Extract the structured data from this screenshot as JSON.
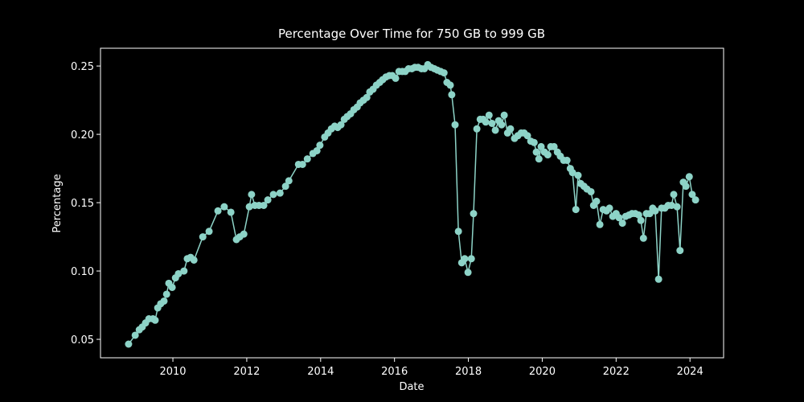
{
  "chart_data": {
    "type": "line",
    "title": "Percentage Over Time for 750 GB to 999 GB",
    "x_label": "Date",
    "y_label": "Percentage",
    "xlim": [
      2008.04,
      2024.91
    ],
    "ylim": [
      0.0365,
      0.263
    ],
    "xticks": [
      2010,
      2012,
      2014,
      2016,
      2018,
      2020,
      2022,
      2024
    ],
    "yticks": [
      0.05,
      {
        "value": 0.1,
        "label": "0.10"
      },
      0.15,
      {
        "value": 0.2,
        "label": "0.20"
      },
      0.25
    ],
    "series": [
      {
        "color": "#8dd3c7",
        "x": [
          2008.8,
          2008.98,
          2009.09,
          2009.17,
          2009.26,
          2009.35,
          2009.46,
          2009.52,
          2009.59,
          2009.67,
          2009.76,
          2009.83,
          2009.89,
          2009.98,
          2010.07,
          2010.15,
          2010.3,
          2010.39,
          2010.48,
          2010.57,
          2010.81,
          2010.98,
          2011.22,
          2011.39,
          2011.57,
          2011.72,
          2011.81,
          2011.92,
          2012.07,
          2012.13,
          2012.22,
          2012.33,
          2012.46,
          2012.57,
          2012.72,
          2012.9,
          2013.05,
          2013.14,
          2013.4,
          2013.51,
          2013.64,
          2013.79,
          2013.9,
          2013.98,
          2014.11,
          2014.2,
          2014.29,
          2014.38,
          2014.46,
          2014.55,
          2014.64,
          2014.72,
          2014.81,
          2014.9,
          2014.99,
          2015.07,
          2015.16,
          2015.25,
          2015.33,
          2015.42,
          2015.51,
          2015.6,
          2015.68,
          2015.77,
          2015.86,
          2015.94,
          2016.03,
          2016.12,
          2016.21,
          2016.29,
          2016.38,
          2016.47,
          2016.55,
          2016.64,
          2016.73,
          2016.81,
          2016.9,
          2016.99,
          2017.08,
          2017.16,
          2017.25,
          2017.34,
          2017.42,
          2017.51,
          2017.55,
          2017.64,
          2017.73,
          2017.82,
          2017.9,
          2017.99,
          2018.08,
          2018.14,
          2018.23,
          2018.32,
          2018.4,
          2018.47,
          2018.56,
          2018.64,
          2018.73,
          2018.82,
          2018.9,
          2018.97,
          2019.06,
          2019.14,
          2019.25,
          2019.34,
          2019.43,
          2019.51,
          2019.6,
          2019.69,
          2019.78,
          2019.84,
          2019.91,
          2019.97,
          2020.06,
          2020.15,
          2020.23,
          2020.32,
          2020.41,
          2020.49,
          2020.58,
          2020.67,
          2020.76,
          2020.82,
          2020.91,
          2020.97,
          2021.04,
          2021.13,
          2021.21,
          2021.32,
          2021.39,
          2021.47,
          2021.56,
          2021.65,
          2021.74,
          2021.82,
          2021.91,
          2022.0,
          2022.08,
          2022.17,
          2022.26,
          2022.35,
          2022.43,
          2022.52,
          2022.61,
          2022.67,
          2022.74,
          2022.82,
          2022.91,
          2022.99,
          2023.06,
          2023.15,
          2023.23,
          2023.32,
          2023.41,
          2023.5,
          2023.56,
          2023.65,
          2023.73,
          2023.82,
          2023.89,
          2023.98,
          2024.06,
          2024.15
        ],
        "values": [
          0.0465,
          0.053,
          0.057,
          0.059,
          0.062,
          0.065,
          0.065,
          0.064,
          0.073,
          0.076,
          0.078,
          0.083,
          0.091,
          0.088,
          0.095,
          0.098,
          0.1,
          0.109,
          0.11,
          0.108,
          0.125,
          0.129,
          0.144,
          0.147,
          0.143,
          0.123,
          0.125,
          0.127,
          0.147,
          0.156,
          0.148,
          0.148,
          0.148,
          0.152,
          0.156,
          0.157,
          0.162,
          0.166,
          0.178,
          0.178,
          0.182,
          0.186,
          0.188,
          0.192,
          0.198,
          0.201,
          0.204,
          0.206,
          0.205,
          0.207,
          0.211,
          0.213,
          0.215,
          0.218,
          0.22,
          0.223,
          0.225,
          0.227,
          0.231,
          0.233,
          0.236,
          0.238,
          0.24,
          0.242,
          0.243,
          0.243,
          0.241,
          0.246,
          0.246,
          0.246,
          0.248,
          0.248,
          0.249,
          0.249,
          0.248,
          0.248,
          0.251,
          0.249,
          0.248,
          0.247,
          0.246,
          0.245,
          0.238,
          0.236,
          0.229,
          0.207,
          0.129,
          0.106,
          0.109,
          0.099,
          0.109,
          0.142,
          0.204,
          0.211,
          0.211,
          0.209,
          0.214,
          0.208,
          0.203,
          0.21,
          0.207,
          0.214,
          0.201,
          0.204,
          0.197,
          0.199,
          0.201,
          0.201,
          0.199,
          0.195,
          0.194,
          0.187,
          0.182,
          0.191,
          0.187,
          0.185,
          0.191,
          0.191,
          0.187,
          0.184,
          0.181,
          0.181,
          0.175,
          0.172,
          0.145,
          0.17,
          0.164,
          0.162,
          0.16,
          0.158,
          0.148,
          0.151,
          0.134,
          0.145,
          0.144,
          0.146,
          0.14,
          0.142,
          0.139,
          0.135,
          0.14,
          0.141,
          0.142,
          0.142,
          0.141,
          0.137,
          0.124,
          0.142,
          0.142,
          0.146,
          0.144,
          0.094,
          0.146,
          0.146,
          0.148,
          0.148,
          0.156,
          0.147,
          0.115,
          0.165,
          0.162,
          0.169,
          0.156,
          0.152
        ]
      }
    ]
  }
}
